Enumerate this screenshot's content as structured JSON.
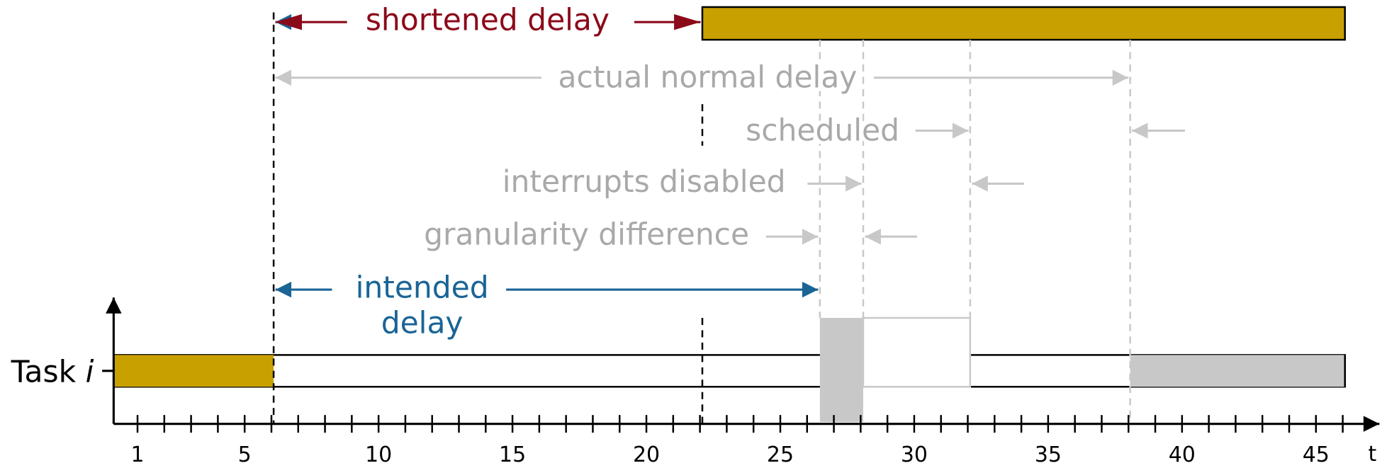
{
  "labels": {
    "shortened": "shortened delay",
    "actual": "actual normal delay",
    "scheduled": "scheduled",
    "interrupts": "interrupts disabled",
    "granularity": "granularity difference",
    "intended": [
      "intended",
      "delay"
    ],
    "task": "Task",
    "task_index": "i"
  },
  "axis": {
    "label": "t",
    "ticks": [
      1,
      5,
      10,
      15,
      20,
      25,
      30,
      35,
      40,
      45
    ]
  }
}
